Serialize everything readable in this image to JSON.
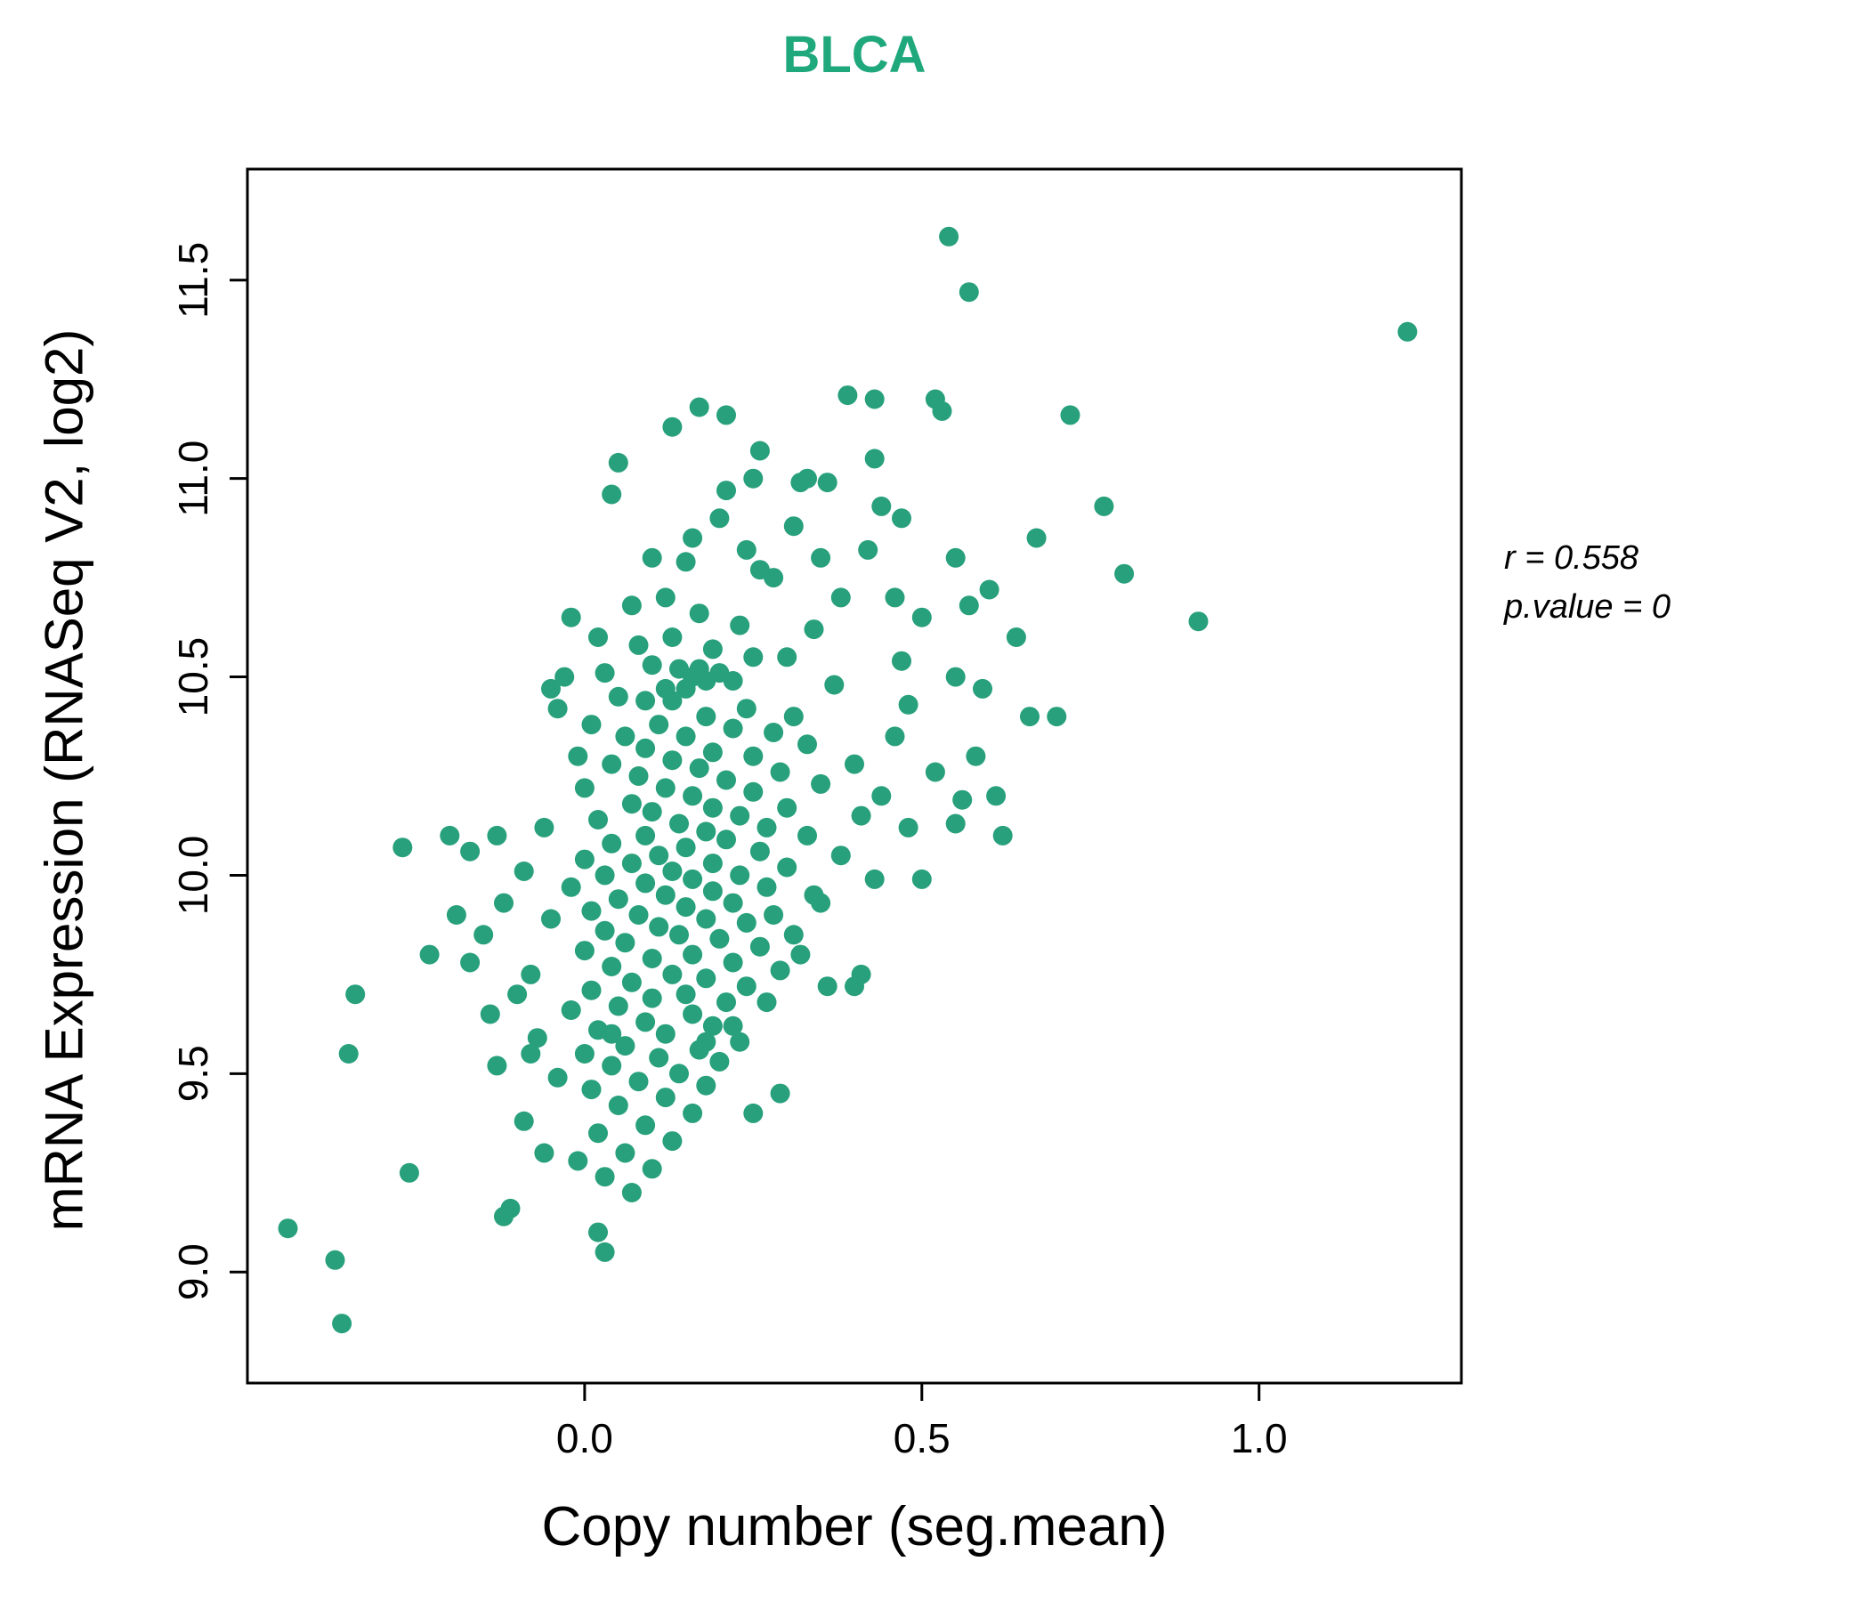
{
  "chart_data": {
    "type": "scatter",
    "title": "BLCA",
    "title_color": "#1FA87B",
    "point_color": "#27A07B",
    "xlabel": "Copy number (seg.mean)",
    "ylabel": "mRNA Expression (RNASeq V2, log2)",
    "xlim": [
      -0.5,
      1.3
    ],
    "ylim": [
      8.72,
      11.78
    ],
    "xticks": [
      0.0,
      0.5,
      1.0
    ],
    "xtick_labels": [
      "0.0",
      "0.5",
      "1.0"
    ],
    "yticks": [
      9.0,
      9.5,
      10.0,
      10.5,
      11.0,
      11.5
    ],
    "ytick_labels": [
      "9.0",
      "9.5",
      "10.0",
      "10.5",
      "11.0",
      "11.5"
    ],
    "grid": false,
    "legend": "none",
    "annotation": {
      "r_label": "r = 0.558",
      "p_label": "p.value = 0",
      "r_value": 0.558,
      "p_value": 0
    },
    "points": [
      [
        0.54,
        11.61
      ],
      [
        0.57,
        11.47
      ],
      [
        1.22,
        11.37
      ],
      [
        0.39,
        11.21
      ],
      [
        0.43,
        11.2
      ],
      [
        0.52,
        11.2
      ],
      [
        0.53,
        11.17
      ],
      [
        0.72,
        11.16
      ],
      [
        0.17,
        11.18
      ],
      [
        0.21,
        11.16
      ],
      [
        0.13,
        11.13
      ],
      [
        0.26,
        11.07
      ],
      [
        0.43,
        11.05
      ],
      [
        0.05,
        11.04
      ],
      [
        0.25,
        11.0
      ],
      [
        0.32,
        10.99
      ],
      [
        0.33,
        11.0
      ],
      [
        0.36,
        10.99
      ],
      [
        0.21,
        10.97
      ],
      [
        0.04,
        10.96
      ],
      [
        0.44,
        10.93
      ],
      [
        0.77,
        10.93
      ],
      [
        0.2,
        10.9
      ],
      [
        0.47,
        10.9
      ],
      [
        0.31,
        10.88
      ],
      [
        0.67,
        10.85
      ],
      [
        0.16,
        10.85
      ],
      [
        0.24,
        10.82
      ],
      [
        0.42,
        10.82
      ],
      [
        0.55,
        10.8
      ],
      [
        0.1,
        10.8
      ],
      [
        0.15,
        10.79
      ],
      [
        0.35,
        10.8
      ],
      [
        0.26,
        10.77
      ],
      [
        0.28,
        10.75
      ],
      [
        0.8,
        10.76
      ],
      [
        0.6,
        10.72
      ],
      [
        0.46,
        10.7
      ],
      [
        0.12,
        10.7
      ],
      [
        0.38,
        10.7
      ],
      [
        0.07,
        10.68
      ],
      [
        0.57,
        10.68
      ],
      [
        0.17,
        10.66
      ],
      [
        0.5,
        10.65
      ],
      [
        0.91,
        10.64
      ],
      [
        -0.02,
        10.65
      ],
      [
        0.23,
        10.63
      ],
      [
        0.34,
        10.62
      ],
      [
        0.13,
        10.6
      ],
      [
        0.64,
        10.6
      ],
      [
        0.02,
        10.6
      ],
      [
        0.08,
        10.58
      ],
      [
        0.19,
        10.57
      ],
      [
        0.25,
        10.55
      ],
      [
        0.3,
        10.55
      ],
      [
        0.47,
        10.54
      ],
      [
        0.1,
        10.53
      ],
      [
        0.14,
        10.52
      ],
      [
        0.17,
        10.52
      ],
      [
        0.2,
        10.51
      ],
      [
        0.03,
        10.51
      ],
      [
        -0.03,
        10.5
      ],
      [
        0.16,
        10.5
      ],
      [
        0.55,
        10.5
      ],
      [
        0.18,
        10.49
      ],
      [
        0.22,
        10.49
      ],
      [
        0.37,
        10.48
      ],
      [
        0.12,
        10.47
      ],
      [
        0.15,
        10.47
      ],
      [
        0.59,
        10.47
      ],
      [
        -0.05,
        10.47
      ],
      [
        0.05,
        10.45
      ],
      [
        0.09,
        10.44
      ],
      [
        0.13,
        10.44
      ],
      [
        0.48,
        10.43
      ],
      [
        0.24,
        10.42
      ],
      [
        -0.04,
        10.42
      ],
      [
        0.31,
        10.4
      ],
      [
        0.18,
        10.4
      ],
      [
        0.7,
        10.4
      ],
      [
        0.66,
        10.4
      ],
      [
        0.01,
        10.38
      ],
      [
        0.11,
        10.38
      ],
      [
        0.22,
        10.37
      ],
      [
        0.28,
        10.36
      ],
      [
        0.06,
        10.35
      ],
      [
        0.15,
        10.35
      ],
      [
        0.46,
        10.35
      ],
      [
        0.33,
        10.33
      ],
      [
        0.09,
        10.32
      ],
      [
        0.19,
        10.31
      ],
      [
        0.58,
        10.3
      ],
      [
        0.25,
        10.3
      ],
      [
        -0.01,
        10.3
      ],
      [
        0.13,
        10.29
      ],
      [
        0.4,
        10.28
      ],
      [
        0.04,
        10.28
      ],
      [
        0.17,
        10.27
      ],
      [
        0.29,
        10.26
      ],
      [
        0.52,
        10.26
      ],
      [
        0.08,
        10.25
      ],
      [
        0.21,
        10.24
      ],
      [
        0.35,
        10.23
      ],
      [
        0.12,
        10.22
      ],
      [
        0.0,
        10.22
      ],
      [
        0.25,
        10.21
      ],
      [
        0.44,
        10.2
      ],
      [
        0.16,
        10.2
      ],
      [
        0.61,
        10.2
      ],
      [
        0.56,
        10.19
      ],
      [
        0.07,
        10.18
      ],
      [
        0.3,
        10.17
      ],
      [
        0.19,
        10.17
      ],
      [
        0.1,
        10.16
      ],
      [
        0.41,
        10.15
      ],
      [
        0.23,
        10.15
      ],
      [
        0.02,
        10.14
      ],
      [
        0.14,
        10.13
      ],
      [
        0.55,
        10.13
      ],
      [
        0.27,
        10.12
      ],
      [
        0.48,
        10.12
      ],
      [
        -0.06,
        10.12
      ],
      [
        0.18,
        10.11
      ],
      [
        0.09,
        10.1
      ],
      [
        0.33,
        10.1
      ],
      [
        -0.13,
        10.1
      ],
      [
        0.62,
        10.1
      ],
      [
        -0.2,
        10.1
      ],
      [
        0.21,
        10.09
      ],
      [
        0.04,
        10.08
      ],
      [
        -0.27,
        10.07
      ],
      [
        0.15,
        10.07
      ],
      [
        0.26,
        10.06
      ],
      [
        -0.17,
        10.06
      ],
      [
        0.11,
        10.05
      ],
      [
        0.38,
        10.05
      ],
      [
        0.0,
        10.04
      ],
      [
        0.19,
        10.03
      ],
      [
        0.07,
        10.03
      ],
      [
        0.3,
        10.02
      ],
      [
        0.13,
        10.01
      ],
      [
        -0.09,
        10.01
      ],
      [
        0.23,
        10.0
      ],
      [
        0.03,
        10.0
      ],
      [
        0.16,
        9.99
      ],
      [
        0.43,
        9.99
      ],
      [
        0.5,
        9.99
      ],
      [
        0.09,
        9.98
      ],
      [
        0.27,
        9.97
      ],
      [
        -0.02,
        9.97
      ],
      [
        0.19,
        9.96
      ],
      [
        0.12,
        9.95
      ],
      [
        0.34,
        9.95
      ],
      [
        0.05,
        9.94
      ],
      [
        0.35,
        9.93
      ],
      [
        0.22,
        9.93
      ],
      [
        -0.12,
        9.93
      ],
      [
        0.15,
        9.92
      ],
      [
        0.01,
        9.91
      ],
      [
        0.28,
        9.9
      ],
      [
        0.08,
        9.9
      ],
      [
        -0.19,
        9.9
      ],
      [
        0.18,
        9.89
      ],
      [
        -0.05,
        9.89
      ],
      [
        0.24,
        9.88
      ],
      [
        0.11,
        9.87
      ],
      [
        0.03,
        9.86
      ],
      [
        0.31,
        9.85
      ],
      [
        0.14,
        9.85
      ],
      [
        -0.15,
        9.85
      ],
      [
        0.2,
        9.84
      ],
      [
        0.06,
        9.83
      ],
      [
        0.26,
        9.82
      ],
      [
        0.0,
        9.81
      ],
      [
        0.16,
        9.8
      ],
      [
        0.32,
        9.8
      ],
      [
        -0.23,
        9.8
      ],
      [
        -0.17,
        9.78
      ],
      [
        0.1,
        9.79
      ],
      [
        0.22,
        9.78
      ],
      [
        0.04,
        9.77
      ],
      [
        0.29,
        9.76
      ],
      [
        0.13,
        9.75
      ],
      [
        -0.08,
        9.75
      ],
      [
        0.41,
        9.75
      ],
      [
        0.18,
        9.74
      ],
      [
        0.07,
        9.73
      ],
      [
        0.24,
        9.72
      ],
      [
        0.36,
        9.72
      ],
      [
        0.4,
        9.72
      ],
      [
        0.01,
        9.71
      ],
      [
        0.15,
        9.7
      ],
      [
        -0.34,
        9.7
      ],
      [
        -0.1,
        9.7
      ],
      [
        0.1,
        9.69
      ],
      [
        0.21,
        9.68
      ],
      [
        0.27,
        9.68
      ],
      [
        0.05,
        9.67
      ],
      [
        -0.02,
        9.66
      ],
      [
        0.16,
        9.65
      ],
      [
        -0.14,
        9.65
      ],
      [
        0.09,
        9.63
      ],
      [
        0.19,
        9.62
      ],
      [
        0.22,
        9.62
      ],
      [
        0.02,
        9.61
      ],
      [
        0.12,
        9.6
      ],
      [
        0.04,
        9.6
      ],
      [
        -0.07,
        9.59
      ],
      [
        0.23,
        9.58
      ],
      [
        0.18,
        9.58
      ],
      [
        0.06,
        9.57
      ],
      [
        0.17,
        9.56
      ],
      [
        -0.35,
        9.55
      ],
      [
        0.0,
        9.55
      ],
      [
        -0.08,
        9.55
      ],
      [
        0.11,
        9.54
      ],
      [
        0.2,
        9.53
      ],
      [
        -0.13,
        9.52
      ],
      [
        0.04,
        9.52
      ],
      [
        0.14,
        9.5
      ],
      [
        -0.04,
        9.49
      ],
      [
        0.08,
        9.48
      ],
      [
        0.18,
        9.47
      ],
      [
        0.01,
        9.46
      ],
      [
        0.29,
        9.45
      ],
      [
        0.12,
        9.44
      ],
      [
        0.05,
        9.42
      ],
      [
        0.16,
        9.4
      ],
      [
        0.25,
        9.4
      ],
      [
        -0.09,
        9.38
      ],
      [
        0.09,
        9.37
      ],
      [
        0.02,
        9.35
      ],
      [
        0.13,
        9.33
      ],
      [
        0.06,
        9.3
      ],
      [
        -0.06,
        9.3
      ],
      [
        -0.01,
        9.28
      ],
      [
        0.1,
        9.26
      ],
      [
        0.03,
        9.24
      ],
      [
        -0.26,
        9.25
      ],
      [
        0.07,
        9.2
      ],
      [
        -0.11,
        9.16
      ],
      [
        -0.12,
        9.14
      ],
      [
        0.02,
        9.1
      ],
      [
        0.03,
        9.05
      ],
      [
        -0.44,
        9.11
      ],
      [
        -0.37,
        9.03
      ],
      [
        -0.36,
        8.87
      ]
    ]
  }
}
